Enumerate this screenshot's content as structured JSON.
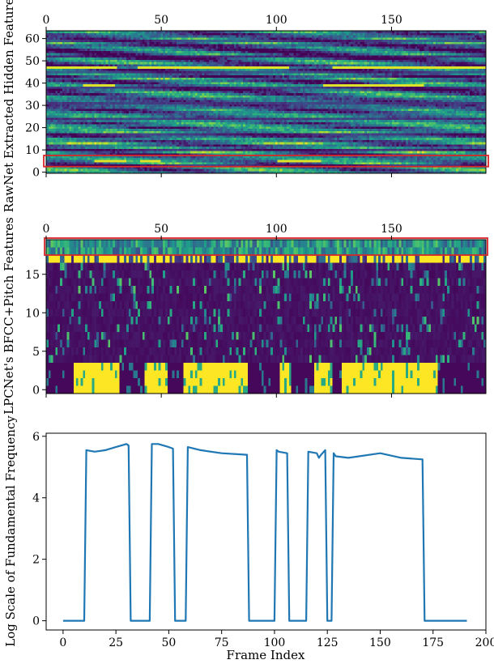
{
  "chart_data": [
    {
      "type": "heatmap",
      "ylabel": "RawNet Extracted Hidden Features",
      "xlim": [
        0,
        191
      ],
      "ylim": [
        -0.5,
        63.5
      ],
      "x_ticks": [
        0,
        50,
        100,
        150
      ],
      "y_ticks": [
        0,
        10,
        20,
        30,
        40,
        50,
        60
      ],
      "x_tick_position": "top",
      "n_rows": 64,
      "n_cols": 192,
      "colormap": "viridis",
      "bright_rows": [
        47,
        39,
        5
      ],
      "highlight_box": {
        "row_from": 2.5,
        "row_to": 7.5,
        "color": "#d62728"
      }
    },
    {
      "type": "heatmap",
      "ylabel": "LPCNet's BFCC+Pitch Features",
      "xlim": [
        0,
        191
      ],
      "ylim": [
        -0.5,
        19.5
      ],
      "x_ticks": [
        0,
        50,
        100,
        150
      ],
      "y_ticks": [
        0,
        5,
        10,
        15
      ],
      "x_tick_position": "top",
      "n_rows": 20,
      "n_cols": 192,
      "colormap": "viridis",
      "highlight_box": {
        "row_from": 17.5,
        "row_to": 19.5,
        "color": "#d62728"
      }
    },
    {
      "type": "line",
      "xlabel": "Frame Index",
      "ylabel": "Log Scale of Fundamental Frequency",
      "xlim": [
        -8,
        200
      ],
      "ylim": [
        -0.3,
        6.1
      ],
      "x_ticks": [
        0,
        25,
        50,
        75,
        100,
        125,
        150,
        175,
        200
      ],
      "y_ticks": [
        0,
        2,
        4,
        6
      ],
      "color": "#1f77b4",
      "x": [
        0,
        9,
        10,
        11,
        15,
        20,
        25,
        30,
        31,
        32,
        33,
        40,
        41,
        42,
        45,
        50,
        52,
        53,
        54,
        57,
        58,
        59,
        65,
        75,
        87,
        88,
        100,
        101,
        102,
        106,
        107,
        108,
        114,
        115,
        116,
        120,
        121,
        122,
        124,
        125,
        126,
        127,
        128,
        129,
        135,
        150,
        160,
        170,
        171,
        172,
        191
      ],
      "y": [
        0,
        0,
        0,
        5.55,
        5.5,
        5.55,
        5.65,
        5.75,
        5.7,
        0,
        0,
        0,
        0,
        5.75,
        5.75,
        5.65,
        5.6,
        0,
        0,
        0,
        0,
        5.65,
        5.55,
        5.45,
        5.4,
        0,
        0,
        5.55,
        5.5,
        5.45,
        0,
        0,
        0,
        0,
        5.5,
        5.45,
        5.3,
        5.4,
        5.55,
        0,
        0,
        0,
        5.45,
        5.35,
        5.3,
        5.45,
        5.3,
        5.25,
        0,
        0,
        0
      ]
    }
  ]
}
